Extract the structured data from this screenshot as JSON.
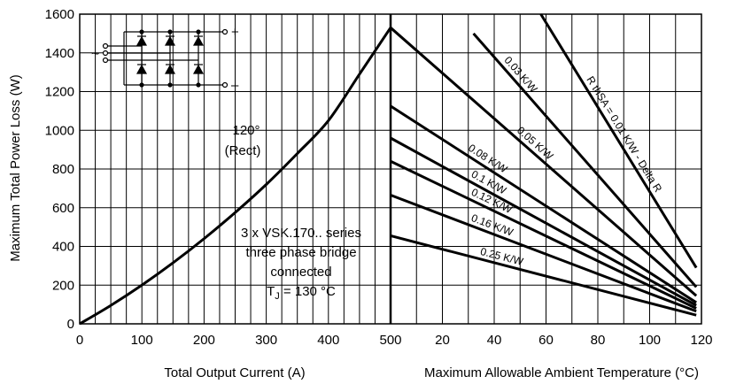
{
  "chart_data": [
    {
      "type": "line",
      "title": "",
      "xlabel": "Total Output Current (A)",
      "ylabel": "Maximum Total Power Loss (W)",
      "xlim": [
        0,
        500
      ],
      "ylim": [
        0,
        1600
      ],
      "x_ticks": [
        "0",
        "100",
        "200",
        "300",
        "400",
        "500"
      ],
      "y_ticks": [
        "0",
        "200",
        "400",
        "600",
        "800",
        "1000",
        "1200",
        "1400",
        "1600"
      ],
      "grid": true,
      "series": [
        {
          "name": "",
          "x": [
            0,
            50,
            100,
            150,
            200,
            250,
            300,
            350,
            400,
            450,
            500
          ],
          "y": [
            0,
            95,
            200,
            315,
            440,
            575,
            720,
            880,
            1050,
            1290,
            1530
          ]
        }
      ],
      "annotations": {
        "conduction_angle": "120°",
        "conduction_type": "(Rect)",
        "device_series": "3 x VSK.170.. series",
        "configuration": "three phase bridge",
        "connection": "connected",
        "tj_prefix": "T",
        "tj_subscript": "J",
        "tj_value": " = 130 °C"
      }
    },
    {
      "type": "line",
      "title": "",
      "xlabel": "Maximum Allowable Ambient Temperature (°C)",
      "ylabel": "",
      "xlim": [
        0,
        120
      ],
      "ylim": [
        0,
        1600
      ],
      "x_ticks": [
        "500",
        "20",
        "40",
        "60",
        "80",
        "100",
        "120"
      ],
      "grid": true,
      "series": [
        {
          "name": "R thSA = 0.01 K/W - Delta R",
          "x": [
            58,
            118
          ],
          "y": [
            1600,
            290
          ]
        },
        {
          "name": "0.03 K/W",
          "x": [
            32,
            118
          ],
          "y": [
            1500,
            190
          ]
        },
        {
          "name": "0.05 K/W",
          "x": [
            0,
            118
          ],
          "y": [
            1530,
            145
          ]
        },
        {
          "name": "0.08 K/W",
          "x": [
            0,
            118
          ],
          "y": [
            1125,
            110
          ]
        },
        {
          "name": "0.1 K/W",
          "x": [
            0,
            118
          ],
          "y": [
            960,
            95
          ]
        },
        {
          "name": "0.12 K/W",
          "x": [
            0,
            118
          ],
          "y": [
            840,
            80
          ]
        },
        {
          "name": "0.16 K/W",
          "x": [
            0,
            118
          ],
          "y": [
            665,
            65
          ]
        },
        {
          "name": "0.25 K/W",
          "x": [
            0,
            118
          ],
          "y": [
            455,
            45
          ]
        }
      ]
    }
  ],
  "circuit": {
    "plus_label": "+",
    "minus_label": "–",
    "ac_symbol": "~"
  }
}
